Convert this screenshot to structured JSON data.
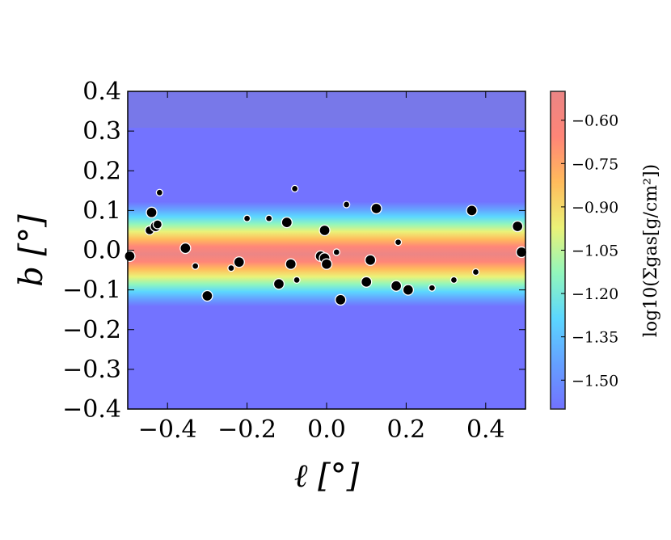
{
  "chart_data": {
    "type": "scatter",
    "xlabel": "ℓ [°]",
    "ylabel": "b [°]",
    "xlim": [
      -0.5,
      0.5
    ],
    "ylim": [
      -0.4,
      0.4
    ],
    "x_ticks": [
      -0.4,
      -0.2,
      0.0,
      0.2,
      0.4
    ],
    "x_tick_labels": [
      "−0.4",
      "−0.2",
      "0.0",
      "0.2",
      "0.4"
    ],
    "y_ticks": [
      0.4,
      0.3,
      0.2,
      0.1,
      0.0,
      -0.1,
      -0.2,
      -0.3,
      -0.4
    ],
    "y_tick_labels": [
      "0.4",
      "0.3",
      "0.2",
      "0.1",
      "0.0",
      "−0.1",
      "−0.2",
      "−0.3",
      "−0.4"
    ],
    "grid": false,
    "background": {
      "type": "heatmap",
      "description_values": "log10 gas surface density, peaks at b≈-0.01 and falls off with |b|",
      "peak_b": -0.01,
      "colormap": [
        "#5a5aff",
        "#4a90ff",
        "#3fd0ff",
        "#7ff5b0",
        "#e8f060",
        "#ffb040",
        "#ff7060",
        "#e87070"
      ]
    },
    "colorbar": {
      "label": "log10(Σgas[g/cm²])",
      "range": [
        -1.6,
        -0.5
      ],
      "ticks": [
        -0.6,
        -0.75,
        -0.9,
        -1.05,
        -1.2,
        -1.35,
        -1.5
      ],
      "tick_labels": [
        "−0.60",
        "−0.75",
        "−0.90",
        "−1.05",
        "−1.20",
        "−1.35",
        "−1.50"
      ]
    },
    "series": [
      {
        "marker_color": "#000000",
        "marker_edge": "#ffffff",
        "points": [
          {
            "x": -0.495,
            "y": -0.015,
            "size": "large"
          },
          {
            "x": -0.44,
            "y": 0.095,
            "size": "large"
          },
          {
            "x": -0.445,
            "y": 0.05,
            "size": "medium"
          },
          {
            "x": -0.43,
            "y": 0.06,
            "size": "large"
          },
          {
            "x": -0.425,
            "y": 0.065,
            "size": "medium"
          },
          {
            "x": -0.42,
            "y": 0.145,
            "size": "small"
          },
          {
            "x": -0.355,
            "y": 0.005,
            "size": "large"
          },
          {
            "x": -0.33,
            "y": -0.04,
            "size": "small"
          },
          {
            "x": -0.3,
            "y": -0.115,
            "size": "large"
          },
          {
            "x": -0.24,
            "y": -0.045,
            "size": "small"
          },
          {
            "x": -0.22,
            "y": -0.03,
            "size": "large"
          },
          {
            "x": -0.2,
            "y": 0.08,
            "size": "small"
          },
          {
            "x": -0.145,
            "y": 0.08,
            "size": "small"
          },
          {
            "x": -0.12,
            "y": -0.085,
            "size": "large"
          },
          {
            "x": -0.1,
            "y": 0.07,
            "size": "large"
          },
          {
            "x": -0.09,
            "y": -0.035,
            "size": "large"
          },
          {
            "x": -0.08,
            "y": 0.155,
            "size": "small"
          },
          {
            "x": -0.075,
            "y": -0.075,
            "size": "small"
          },
          {
            "x": -0.015,
            "y": -0.015,
            "size": "large"
          },
          {
            "x": -0.005,
            "y": 0.05,
            "size": "large"
          },
          {
            "x": -0.005,
            "y": -0.02,
            "size": "large"
          },
          {
            "x": 0.0,
            "y": -0.035,
            "size": "large"
          },
          {
            "x": 0.025,
            "y": -0.005,
            "size": "small"
          },
          {
            "x": 0.035,
            "y": -0.125,
            "size": "large"
          },
          {
            "x": 0.05,
            "y": 0.115,
            "size": "small"
          },
          {
            "x": 0.1,
            "y": -0.08,
            "size": "large"
          },
          {
            "x": 0.11,
            "y": -0.025,
            "size": "large"
          },
          {
            "x": 0.125,
            "y": 0.105,
            "size": "large"
          },
          {
            "x": 0.175,
            "y": -0.09,
            "size": "large"
          },
          {
            "x": 0.18,
            "y": 0.02,
            "size": "small"
          },
          {
            "x": 0.205,
            "y": -0.1,
            "size": "large"
          },
          {
            "x": 0.265,
            "y": -0.095,
            "size": "small"
          },
          {
            "x": 0.32,
            "y": -0.075,
            "size": "small"
          },
          {
            "x": 0.365,
            "y": 0.1,
            "size": "large"
          },
          {
            "x": 0.375,
            "y": -0.055,
            "size": "small"
          },
          {
            "x": 0.48,
            "y": 0.06,
            "size": "large"
          },
          {
            "x": 0.49,
            "y": -0.005,
            "size": "large"
          }
        ]
      }
    ]
  }
}
